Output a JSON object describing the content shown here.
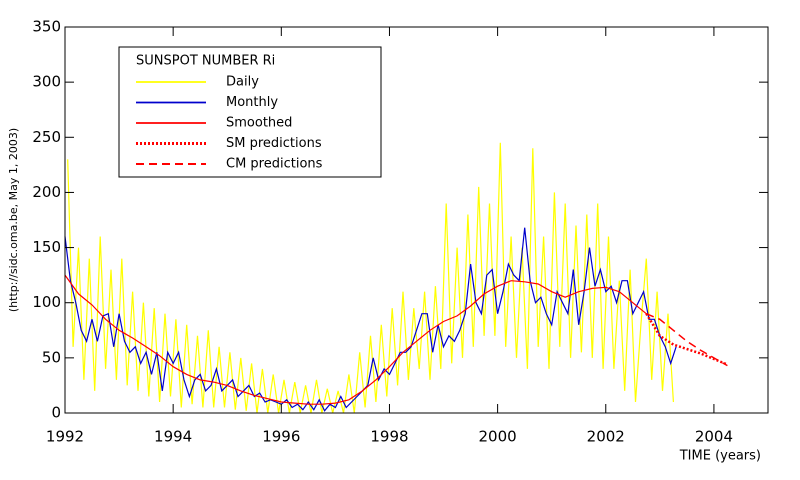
{
  "chart_data": {
    "type": "line",
    "legend_title": "SUNSPOT NUMBER Ri",
    "xlabel": "TIME (years)",
    "ylabel": "(http://sidc.oma.be, May  1, 2003)",
    "xlim": [
      1992,
      2005
    ],
    "ylim": [
      0,
      350
    ],
    "xticks": [
      1992,
      1994,
      1996,
      1998,
      2000,
      2002,
      2004
    ],
    "yticks": [
      0,
      50,
      100,
      150,
      200,
      250,
      300,
      350
    ],
    "legend": "upper left",
    "series": [
      {
        "name": "Daily",
        "color": "#ffff00",
        "style": "solid",
        "x": [
          1992.05,
          1992.15,
          1992.25,
          1992.35,
          1992.45,
          1992.55,
          1992.65,
          1992.75,
          1992.85,
          1992.95,
          1993.05,
          1993.15,
          1993.25,
          1993.35,
          1993.45,
          1993.55,
          1993.65,
          1993.75,
          1993.85,
          1993.95,
          1994.05,
          1994.15,
          1994.25,
          1994.35,
          1994.45,
          1994.55,
          1994.65,
          1994.75,
          1994.85,
          1994.95,
          1995.05,
          1995.15,
          1995.25,
          1995.35,
          1995.45,
          1995.55,
          1995.65,
          1995.75,
          1995.85,
          1995.95,
          1996.05,
          1996.15,
          1996.25,
          1996.35,
          1996.45,
          1996.55,
          1996.65,
          1996.75,
          1996.85,
          1996.95,
          1997.05,
          1997.15,
          1997.25,
          1997.35,
          1997.45,
          1997.55,
          1997.65,
          1997.75,
          1997.85,
          1997.95,
          1998.05,
          1998.15,
          1998.25,
          1998.35,
          1998.45,
          1998.55,
          1998.65,
          1998.75,
          1998.85,
          1998.95,
          1999.05,
          1999.15,
          1999.25,
          1999.35,
          1999.45,
          1999.55,
          1999.65,
          1999.75,
          1999.85,
          1999.95,
          2000.05,
          2000.15,
          2000.25,
          2000.35,
          2000.45,
          2000.55,
          2000.65,
          2000.75,
          2000.85,
          2000.95,
          2001.05,
          2001.15,
          2001.25,
          2001.35,
          2001.45,
          2001.55,
          2001.65,
          2001.75,
          2001.85,
          2001.95,
          2002.05,
          2002.15,
          2002.25,
          2002.35,
          2002.45,
          2002.55,
          2002.65,
          2002.75,
          2002.85,
          2002.95,
          2003.05,
          2003.15,
          2003.25
        ],
        "values": [
          230,
          60,
          150,
          30,
          140,
          20,
          160,
          40,
          130,
          30,
          140,
          25,
          110,
          20,
          100,
          15,
          95,
          10,
          90,
          15,
          85,
          5,
          80,
          8,
          70,
          5,
          75,
          5,
          60,
          5,
          55,
          3,
          50,
          2,
          45,
          0,
          40,
          0,
          35,
          0,
          30,
          0,
          28,
          0,
          25,
          0,
          30,
          0,
          22,
          0,
          20,
          0,
          35,
          0,
          55,
          5,
          70,
          10,
          80,
          15,
          95,
          25,
          110,
          30,
          95,
          40,
          110,
          30,
          115,
          40,
          190,
          45,
          150,
          50,
          180,
          60,
          205,
          70,
          190,
          70,
          245,
          60,
          160,
          50,
          150,
          40,
          240,
          60,
          160,
          40,
          200,
          60,
          190,
          50,
          170,
          55,
          180,
          50,
          190,
          40,
          160,
          40,
          120,
          20,
          130,
          10,
          80,
          140,
          30,
          110,
          20,
          90,
          10
        ]
      },
      {
        "name": "Monthly",
        "color": "#0000cc",
        "style": "solid",
        "x": [
          1992.0,
          1992.1,
          1992.2,
          1992.3,
          1992.4,
          1992.5,
          1992.6,
          1992.7,
          1992.8,
          1992.9,
          1993.0,
          1993.1,
          1993.2,
          1993.3,
          1993.4,
          1993.5,
          1993.6,
          1993.7,
          1993.8,
          1993.9,
          1994.0,
          1994.1,
          1994.2,
          1994.3,
          1994.4,
          1994.5,
          1994.6,
          1994.7,
          1994.8,
          1994.9,
          1995.0,
          1995.1,
          1995.2,
          1995.3,
          1995.4,
          1995.5,
          1995.6,
          1995.7,
          1995.8,
          1995.9,
          1996.0,
          1996.1,
          1996.2,
          1996.3,
          1996.4,
          1996.5,
          1996.6,
          1996.7,
          1996.8,
          1996.9,
          1997.0,
          1997.1,
          1997.2,
          1997.3,
          1997.4,
          1997.5,
          1997.6,
          1997.7,
          1997.8,
          1997.9,
          1998.0,
          1998.1,
          1998.2,
          1998.3,
          1998.4,
          1998.5,
          1998.6,
          1998.7,
          1998.8,
          1998.9,
          1999.0,
          1999.1,
          1999.2,
          1999.3,
          1999.4,
          1999.5,
          1999.6,
          1999.7,
          1999.8,
          1999.9,
          2000.0,
          2000.1,
          2000.2,
          2000.3,
          2000.4,
          2000.5,
          2000.6,
          2000.7,
          2000.8,
          2000.9,
          2001.0,
          2001.1,
          2001.2,
          2001.3,
          2001.4,
          2001.5,
          2001.6,
          2001.7,
          2001.8,
          2001.9,
          2002.0,
          2002.1,
          2002.2,
          2002.3,
          2002.4,
          2002.5,
          2002.6,
          2002.7,
          2002.8,
          2002.9,
          2003.0,
          2003.1,
          2003.2,
          2003.3
        ],
        "values": [
          160,
          120,
          100,
          75,
          65,
          85,
          65,
          88,
          90,
          60,
          90,
          65,
          55,
          60,
          45,
          55,
          35,
          55,
          20,
          55,
          45,
          55,
          30,
          15,
          30,
          35,
          20,
          25,
          40,
          20,
          25,
          30,
          15,
          20,
          25,
          15,
          18,
          10,
          12,
          10,
          8,
          12,
          5,
          8,
          3,
          10,
          3,
          12,
          2,
          8,
          5,
          15,
          5,
          10,
          15,
          20,
          25,
          50,
          30,
          40,
          35,
          45,
          55,
          55,
          60,
          75,
          90,
          90,
          55,
          80,
          60,
          70,
          65,
          75,
          90,
          135,
          100,
          90,
          125,
          130,
          90,
          110,
          135,
          125,
          120,
          168,
          120,
          100,
          105,
          90,
          80,
          110,
          100,
          90,
          130,
          80,
          110,
          150,
          115,
          130,
          110,
          115,
          100,
          120,
          120,
          90,
          100,
          110,
          85,
          85,
          70,
          60,
          45,
          60
        ]
      },
      {
        "name": "Smoothed",
        "color": "#ff0000",
        "style": "solid",
        "x": [
          1992.0,
          1992.25,
          1992.5,
          1992.75,
          1993.0,
          1993.25,
          1993.5,
          1993.75,
          1994.0,
          1994.25,
          1994.5,
          1994.75,
          1995.0,
          1995.25,
          1995.5,
          1995.75,
          1996.0,
          1996.25,
          1996.5,
          1996.75,
          1997.0,
          1997.25,
          1997.5,
          1997.75,
          1998.0,
          1998.25,
          1998.5,
          1998.75,
          1999.0,
          1999.25,
          1999.5,
          1999.75,
          2000.0,
          2000.25,
          2000.5,
          2000.75,
          2001.0,
          2001.25,
          2001.5,
          2001.75,
          2002.0,
          2002.25,
          2002.5,
          2002.75
        ],
        "values": [
          125,
          108,
          98,
          85,
          75,
          68,
          60,
          52,
          42,
          35,
          30,
          28,
          25,
          20,
          16,
          13,
          10,
          9,
          8,
          8,
          9,
          12,
          20,
          30,
          42,
          55,
          65,
          75,
          83,
          88,
          97,
          108,
          115,
          120,
          119,
          117,
          110,
          105,
          110,
          113,
          114,
          110,
          100,
          90
        ]
      },
      {
        "name": "SM predictions",
        "color": "#ff0000",
        "style": "dotted",
        "x": [
          2002.75,
          2003.0,
          2003.25,
          2003.5,
          2003.75,
          2004.0,
          2004.25
        ],
        "values": [
          90,
          70,
          62,
          58,
          54,
          49,
          44
        ]
      },
      {
        "name": "CM predictions",
        "color": "#ff0000",
        "style": "dashed",
        "x": [
          2002.75,
          2003.0,
          2003.25,
          2003.5,
          2003.75,
          2004.0,
          2004.25
        ],
        "values": [
          90,
          85,
          75,
          65,
          57,
          50,
          43
        ]
      }
    ]
  }
}
